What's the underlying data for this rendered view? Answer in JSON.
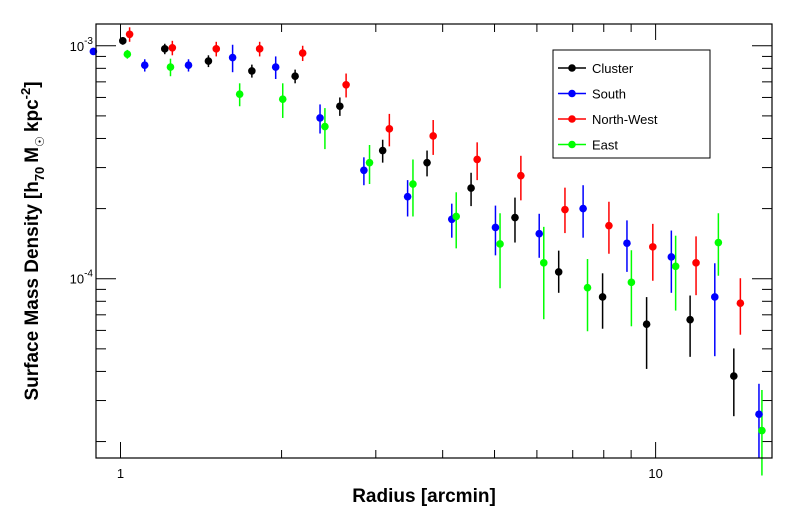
{
  "chart_data": {
    "type": "scatter",
    "xlabel": "Radius [arcmin]",
    "ylabel": "Surface Mass Density",
    "xscale": "log",
    "yscale": "log",
    "xlim": [
      0.9,
      16.5
    ],
    "ylim": [
      1.7e-05,
      0.00124
    ],
    "xticklabels": [
      {
        "value": 1,
        "text": "1"
      },
      {
        "value": 10,
        "text": "10"
      }
    ],
    "yticklabels": [
      {
        "value": 0.001,
        "base": "10",
        "exp": "-3"
      },
      {
        "value": 0.0001,
        "base": "10",
        "exp": "-4"
      }
    ],
    "legend_position": "top-right",
    "error_bars": true,
    "series": [
      {
        "name": "Cluster",
        "color": "#000000",
        "x": [
          1.01,
          1.21,
          1.46,
          1.76,
          2.12,
          2.57,
          3.09,
          3.74,
          4.52,
          5.46,
          6.59,
          7.96,
          9.62,
          11.6,
          14.0
        ],
        "y": [
          0.00105,
          0.00097,
          0.00086,
          0.00078,
          0.00074,
          0.00055,
          0.000355,
          0.000315,
          0.000245,
          0.000183,
          0.000107,
          8.35e-05,
          6.38e-05,
          6.67e-05,
          3.82e-05
        ],
        "err_low": [
          4e-05,
          5e-05,
          5e-05,
          5e-05,
          5e-05,
          5e-05,
          4e-05,
          4e-05,
          4e-05,
          4e-05,
          2e-05,
          2.25e-05,
          2.28e-05,
          2.05e-05,
          1.25e-05
        ],
        "err_high": [
          4e-05,
          5e-05,
          5e-05,
          5e-05,
          5e-05,
          5e-05,
          4e-05,
          4e-05,
          4e-05,
          4e-05,
          2.5e-05,
          2.2e-05,
          1.96e-05,
          1.8e-05,
          1.2e-05
        ]
      },
      {
        "name": "South",
        "color": "#0000ff",
        "x": [
          0.89,
          1.11,
          1.34,
          1.62,
          1.95,
          2.36,
          2.85,
          3.44,
          4.16,
          5.02,
          6.06,
          7.32,
          8.84,
          10.7,
          12.9,
          15.6
        ],
        "y": [
          0.000945,
          0.000825,
          0.000825,
          0.00089,
          0.00081,
          0.00049,
          0.000292,
          0.000225,
          0.00018,
          0.000166,
          0.000156,
          0.0002,
          0.000142,
          0.000124,
          8.35e-05,
          2.62e-05
        ],
        "err_low": [
          3e-05,
          5e-05,
          5e-05,
          0.00012,
          9e-05,
          7e-05,
          4e-05,
          4e-05,
          3e-05,
          4e-05,
          3.3e-05,
          5e-05,
          3.5e-05,
          3.7e-05,
          3.7e-05,
          9.2e-06
        ],
        "err_high": [
          3e-05,
          5e-05,
          5e-05,
          0.00012,
          9e-05,
          7e-05,
          4e-05,
          4e-05,
          3e-05,
          4e-05,
          3.4e-05,
          5.2e-05,
          3.6e-05,
          3.7e-05,
          3.3e-05,
          9.2e-06
        ]
      },
      {
        "name": "North-West",
        "color": "#ff0000",
        "x": [
          1.04,
          1.25,
          1.51,
          1.82,
          2.19,
          2.64,
          3.18,
          3.84,
          4.64,
          5.6,
          6.77,
          8.18,
          9.88,
          11.9,
          14.4
        ],
        "y": [
          0.00112,
          0.00098,
          0.00097,
          0.00097,
          0.00093,
          0.00068,
          0.00044,
          0.00041,
          0.000325,
          0.000277,
          0.000198,
          0.000169,
          0.000137,
          0.000117,
          7.85e-05
        ],
        "err_low": [
          8e-05,
          7e-05,
          7e-05,
          7e-05,
          7e-05,
          8e-05,
          7e-05,
          7e-05,
          6e-05,
          6e-05,
          4.1e-05,
          4.1e-05,
          3.9e-05,
          3.2e-05,
          2.1e-05
        ],
        "err_high": [
          8e-05,
          7e-05,
          7e-05,
          7e-05,
          7e-05,
          8e-05,
          7e-05,
          7e-05,
          6e-05,
          6e-05,
          4.8e-05,
          4.5e-05,
          3.5e-05,
          3.5e-05,
          2.2e-05
        ]
      },
      {
        "name": "East",
        "color": "#00ff00",
        "x": [
          1.03,
          1.24,
          1.67,
          2.01,
          2.41,
          2.92,
          3.52,
          4.24,
          5.12,
          6.18,
          7.46,
          9.01,
          10.9,
          13.1,
          15.8
        ],
        "y": [
          0.00092,
          0.00081,
          0.00062,
          0.00059,
          0.00045,
          0.000315,
          0.000255,
          0.000185,
          0.000141,
          0.000117,
          9.15e-05,
          9.65e-05,
          0.000113,
          0.000143,
          2.23e-05
        ],
        "err_low": [
          4e-05,
          7e-05,
          7e-05,
          0.0001,
          9e-05,
          6e-05,
          7e-05,
          5e-05,
          5e-05,
          5e-05,
          3.2e-05,
          3.4e-05,
          4e-05,
          4e-05,
          8e-06
        ],
        "err_high": [
          4e-05,
          7e-05,
          7e-05,
          0.0001,
          9e-05,
          6e-05,
          7e-05,
          5e-05,
          5e-05,
          5e-05,
          3e-05,
          3.6e-05,
          4e-05,
          4.8e-05,
          1.1e-05
        ]
      }
    ]
  }
}
